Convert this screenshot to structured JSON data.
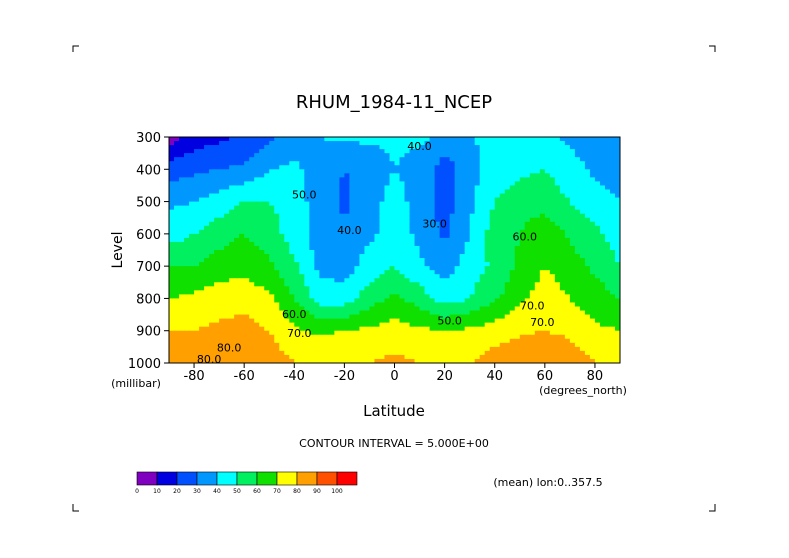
{
  "chart_data": {
    "type": "heatmap",
    "title": "RHUM_1984-11_NCEP",
    "xlabel": "Latitude",
    "ylabel": "Level",
    "x_units": "(degrees_north)",
    "y_units": "(millibar)",
    "x_ticks": [
      -80,
      -60,
      -40,
      -20,
      0,
      20,
      40,
      60,
      80
    ],
    "y_ticks": [
      300,
      400,
      500,
      600,
      700,
      800,
      900,
      1000
    ],
    "xlim": [
      -90,
      90
    ],
    "ylim": [
      300,
      1000
    ],
    "contour_labels": [
      "40.0",
      "50.0",
      "40.0",
      "30.0",
      "60.0",
      "80.0",
      "60.0",
      "70.0",
      "70.0",
      "50.0",
      "70.0",
      "80.0"
    ],
    "x": [
      -90,
      -80,
      -70,
      -60,
      -50,
      -40,
      -30,
      -20,
      -10,
      0,
      10,
      20,
      30,
      40,
      50,
      60,
      70,
      80,
      90
    ],
    "y": [
      300,
      400,
      500,
      600,
      700,
      800,
      900,
      1000
    ],
    "values": [
      [
        5,
        15,
        18,
        22,
        28,
        35,
        40,
        42,
        42,
        43,
        42,
        38,
        40,
        42,
        42,
        42,
        38,
        32,
        30
      ],
      [
        25,
        28,
        30,
        32,
        40,
        42,
        35,
        30,
        32,
        40,
        35,
        25,
        35,
        45,
        48,
        50,
        45,
        38,
        35
      ],
      [
        38,
        40,
        45,
        50,
        50,
        45,
        35,
        28,
        35,
        45,
        35,
        25,
        38,
        50,
        55,
        55,
        50,
        45,
        40
      ],
      [
        45,
        50,
        55,
        60,
        55,
        45,
        35,
        32,
        38,
        45,
        38,
        28,
        40,
        55,
        60,
        68,
        58,
        52,
        45
      ],
      [
        60,
        60,
        65,
        68,
        62,
        52,
        38,
        35,
        45,
        50,
        42,
        35,
        45,
        52,
        62,
        70,
        65,
        58,
        50
      ],
      [
        70,
        72,
        75,
        75,
        72,
        60,
        45,
        45,
        55,
        62,
        55,
        45,
        50,
        58,
        68,
        75,
        70,
        65,
        60
      ],
      [
        80,
        80,
        82,
        85,
        80,
        72,
        68,
        70,
        72,
        75,
        72,
        70,
        72,
        75,
        78,
        80,
        78,
        72,
        70
      ],
      [
        80,
        85,
        88,
        90,
        85,
        80,
        78,
        80,
        80,
        82,
        80,
        80,
        80,
        85,
        88,
        90,
        85,
        80,
        75
      ]
    ],
    "contour_interval_text": "CONTOUR INTERVAL = 5.000E+00",
    "colorbar": {
      "ticks": [
        0,
        10,
        20,
        30,
        40,
        50,
        60,
        70,
        80,
        90,
        100
      ],
      "colors": [
        "#8000c0",
        "#0000e0",
        "#0050ff",
        "#0098ff",
        "#00ffff",
        "#00f060",
        "#10e000",
        "#ffff00",
        "#ffa000",
        "#ff5000",
        "#ff0000"
      ]
    },
    "mean_note": "(mean) lon:0..357.5"
  }
}
